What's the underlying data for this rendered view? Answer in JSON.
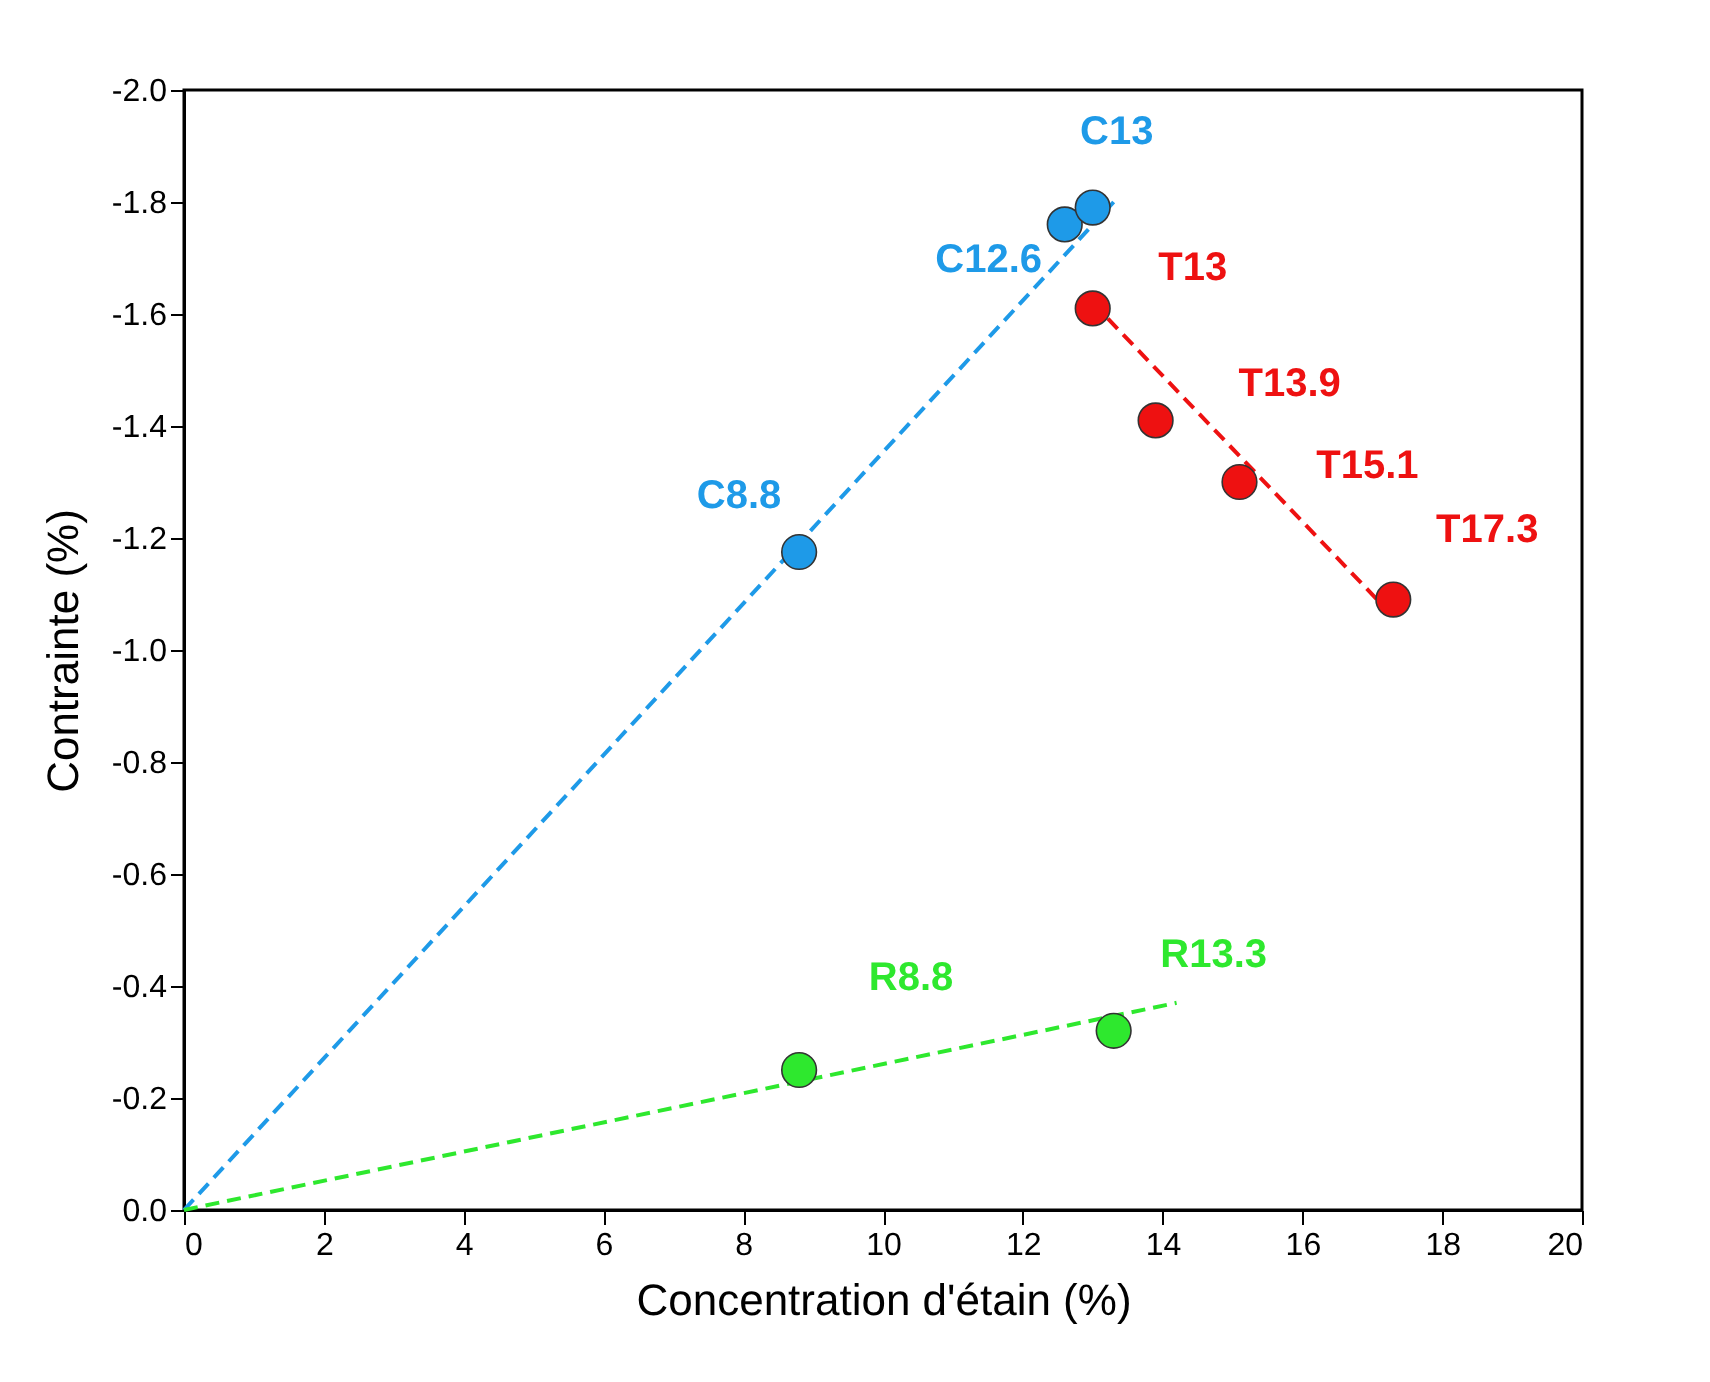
{
  "chart_data": {
    "type": "scatter",
    "xlabel": "Concentration d'étain (%)",
    "ylabel": "Contrainte (%)",
    "xlim": [
      0,
      20
    ],
    "xticks": [
      0,
      2,
      4,
      6,
      8,
      10,
      12,
      14,
      16,
      18,
      20
    ],
    "ylim": [
      0,
      -2.0
    ],
    "yticks": [
      {
        "value": 0,
        "label": "0.0"
      },
      -0.2,
      -0.4,
      -0.6,
      -0.8,
      {
        "value": -1,
        "label": "-1.0"
      },
      -1.2,
      -1.4,
      -1.6,
      -1.8,
      {
        "value": -2,
        "label": "-2.0"
      }
    ],
    "grid": false,
    "marker": "circle",
    "series": [
      {
        "color": "#1e9ae8",
        "x": [
          8.8,
          12.6,
          13.0
        ],
        "values": [
          -1.175,
          -1.76,
          -1.79
        ],
        "value_labels": [
          "C8.8",
          "C12.6",
          "C13"
        ]
      },
      {
        "color": "#ee1111",
        "x": [
          13.0,
          13.9,
          15.1,
          17.3
        ],
        "values": [
          -1.61,
          -1.41,
          -1.3,
          -1.09
        ],
        "value_labels": [
          "T13",
          "T13.9",
          "T15.1",
          "T17.3"
        ]
      },
      {
        "color": "#2ee82e",
        "x": [
          8.8,
          13.3
        ],
        "values": [
          -0.25,
          -0.32
        ],
        "value_labels": [
          "R8.8",
          "R13.3"
        ]
      },
      {
        "type": "line",
        "marker": "none",
        "line_style": "dashed",
        "color": "#1e9ae8",
        "x": [
          0,
          13.3
        ],
        "values": [
          0,
          -1.8
        ]
      },
      {
        "type": "line",
        "marker": "none",
        "line_style": "dashed",
        "color": "#ee1111",
        "x": [
          13.0,
          17.3
        ],
        "values": [
          -1.62,
          -1.06
        ]
      },
      {
        "type": "line",
        "marker": "none",
        "line_style": "dashed",
        "color": "#2ee82e",
        "x": [
          0,
          14.2
        ],
        "values": [
          0,
          -0.37
        ]
      }
    ]
  }
}
